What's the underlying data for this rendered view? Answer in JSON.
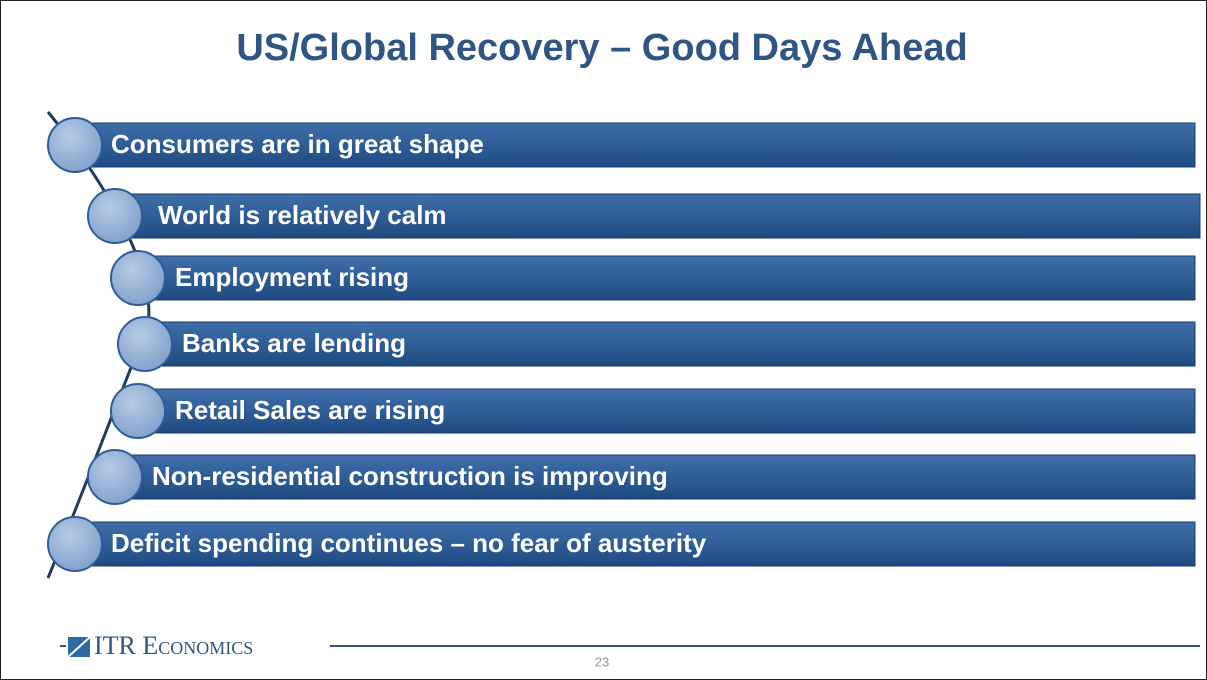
{
  "title": "US/Global Recovery – Good Days Ahead",
  "items": [
    "Consumers are in great shape",
    "World is relatively calm",
    "Employment rising",
    "Banks are lending",
    "Retail Sales are rising",
    "Non-residential construction is improving",
    "Deficit spending continues – no fear of austerity"
  ],
  "footer": {
    "logo": "ITR Economics",
    "page_number": "23"
  }
}
